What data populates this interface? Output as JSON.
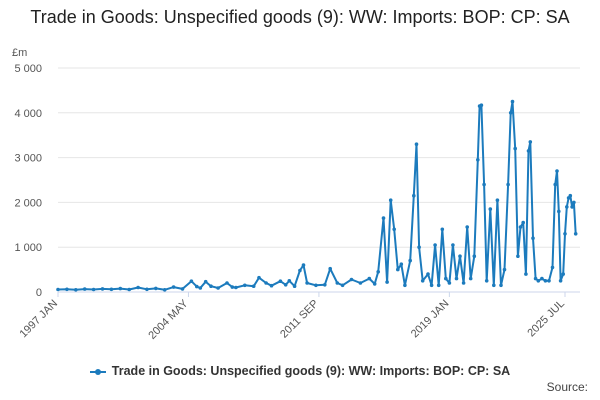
{
  "chart_data": {
    "type": "line",
    "title": "Trade in Goods: Unspecified goods (9): WW: Imports: BOP: CP: SA",
    "unit_label": "£m",
    "ylim": [
      0,
      5000
    ],
    "yticks": [
      0,
      1000,
      2000,
      3000,
      4000,
      5000
    ],
    "ytick_labels": [
      "0",
      "1 000",
      "2 000",
      "3 000",
      "4 000",
      "5 000"
    ],
    "xticks": [
      {
        "label": "1997 JAN",
        "t": 1997.0
      },
      {
        "label": "2004 MAY",
        "t": 2004.333
      },
      {
        "label": "2011 SEP",
        "t": 2011.667
      },
      {
        "label": "2019 JAN",
        "t": 2019.0
      },
      {
        "label": "2025 JUL",
        "t": 2025.5
      }
    ],
    "xlim": [
      1997.0,
      2025.5
    ],
    "grid": true,
    "legend_position": "bottom",
    "series": [
      {
        "name": "Trade in Goods: Unspecified goods (9): WW: Imports: BOP: CP: SA",
        "color": "#1c7bbd",
        "points": [
          [
            1997.0,
            55
          ],
          [
            1997.5,
            60
          ],
          [
            1998.0,
            50
          ],
          [
            1998.5,
            65
          ],
          [
            1999.0,
            55
          ],
          [
            1999.5,
            70
          ],
          [
            2000.0,
            60
          ],
          [
            2000.5,
            75
          ],
          [
            2001.0,
            55
          ],
          [
            2001.5,
            100
          ],
          [
            2002.0,
            60
          ],
          [
            2002.5,
            80
          ],
          [
            2003.0,
            50
          ],
          [
            2003.5,
            110
          ],
          [
            2004.0,
            70
          ],
          [
            2004.5,
            240
          ],
          [
            2004.8,
            120
          ],
          [
            2005.0,
            90
          ],
          [
            2005.3,
            230
          ],
          [
            2005.6,
            130
          ],
          [
            2006.0,
            90
          ],
          [
            2006.5,
            200
          ],
          [
            2006.8,
            110
          ],
          [
            2007.0,
            100
          ],
          [
            2007.5,
            150
          ],
          [
            2008.0,
            130
          ],
          [
            2008.3,
            320
          ],
          [
            2008.7,
            200
          ],
          [
            2009.0,
            140
          ],
          [
            2009.5,
            240
          ],
          [
            2009.8,
            160
          ],
          [
            2010.0,
            250
          ],
          [
            2010.3,
            130
          ],
          [
            2010.6,
            480
          ],
          [
            2010.8,
            600
          ],
          [
            2011.0,
            200
          ],
          [
            2011.5,
            150
          ],
          [
            2012.0,
            160
          ],
          [
            2012.3,
            520
          ],
          [
            2012.7,
            200
          ],
          [
            2013.0,
            150
          ],
          [
            2013.5,
            280
          ],
          [
            2014.0,
            200
          ],
          [
            2014.5,
            300
          ],
          [
            2014.8,
            180
          ],
          [
            2015.0,
            450
          ],
          [
            2015.3,
            1650
          ],
          [
            2015.5,
            220
          ],
          [
            2015.7,
            2050
          ],
          [
            2015.9,
            1400
          ],
          [
            2016.1,
            500
          ],
          [
            2016.3,
            620
          ],
          [
            2016.5,
            150
          ],
          [
            2016.8,
            700
          ],
          [
            2017.0,
            2150
          ],
          [
            2017.15,
            3300
          ],
          [
            2017.3,
            1000
          ],
          [
            2017.5,
            250
          ],
          [
            2017.8,
            400
          ],
          [
            2018.0,
            150
          ],
          [
            2018.2,
            1050
          ],
          [
            2018.4,
            150
          ],
          [
            2018.6,
            1400
          ],
          [
            2018.8,
            300
          ],
          [
            2019.0,
            200
          ],
          [
            2019.2,
            1050
          ],
          [
            2019.4,
            300
          ],
          [
            2019.6,
            800
          ],
          [
            2019.8,
            200
          ],
          [
            2020.0,
            1450
          ],
          [
            2020.2,
            300
          ],
          [
            2020.4,
            800
          ],
          [
            2020.6,
            2950
          ],
          [
            2020.7,
            4150
          ],
          [
            2020.8,
            4170
          ],
          [
            2020.95,
            2400
          ],
          [
            2021.1,
            250
          ],
          [
            2021.3,
            1850
          ],
          [
            2021.5,
            150
          ],
          [
            2021.7,
            2050
          ],
          [
            2021.9,
            150
          ],
          [
            2022.1,
            500
          ],
          [
            2022.3,
            2400
          ],
          [
            2022.45,
            4000
          ],
          [
            2022.55,
            4250
          ],
          [
            2022.7,
            3200
          ],
          [
            2022.85,
            800
          ],
          [
            2023.0,
            1450
          ],
          [
            2023.15,
            1550
          ],
          [
            2023.3,
            400
          ],
          [
            2023.45,
            3150
          ],
          [
            2023.55,
            3350
          ],
          [
            2023.7,
            1200
          ],
          [
            2023.85,
            300
          ],
          [
            2024.0,
            250
          ],
          [
            2024.2,
            300
          ],
          [
            2024.4,
            250
          ],
          [
            2024.6,
            250
          ],
          [
            2024.8,
            550
          ],
          [
            2024.95,
            2400
          ],
          [
            2025.05,
            2700
          ],
          [
            2025.15,
            1800
          ],
          [
            2025.25,
            250
          ],
          [
            2025.4,
            400
          ],
          [
            2025.5,
            1300
          ],
          [
            2025.6,
            1900
          ],
          [
            2025.7,
            2100
          ],
          [
            2025.8,
            2150
          ],
          [
            2025.9,
            1900
          ],
          [
            2026.0,
            2000
          ],
          [
            2026.1,
            1300
          ]
        ]
      }
    ]
  },
  "legend": {
    "label": "Trade in Goods: Unspecified goods (9): WW: Imports: BOP: CP: SA"
  },
  "footer": {
    "source": "Source:"
  }
}
